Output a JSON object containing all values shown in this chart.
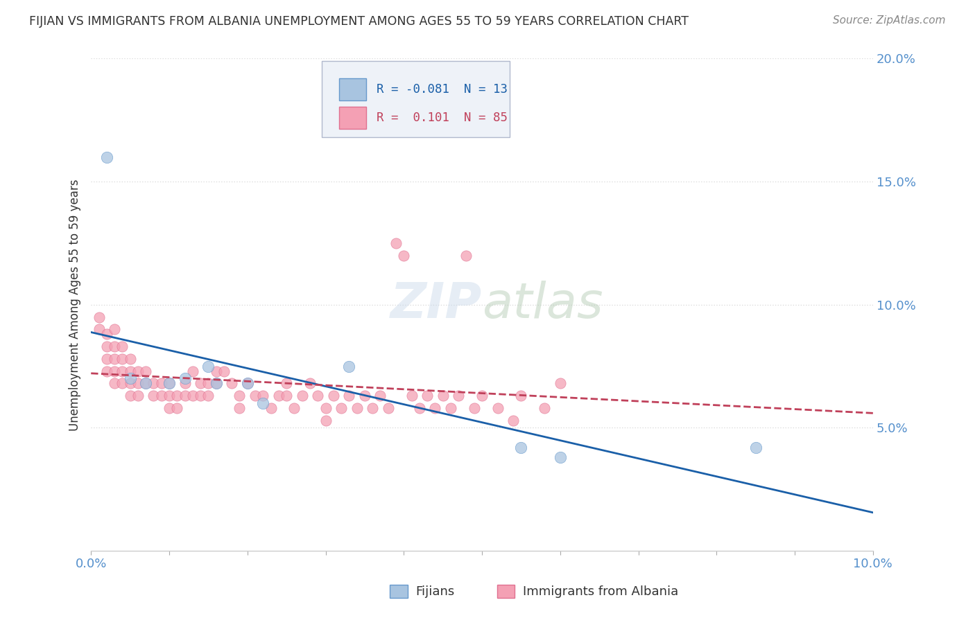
{
  "title": "FIJIAN VS IMMIGRANTS FROM ALBANIA UNEMPLOYMENT AMONG AGES 55 TO 59 YEARS CORRELATION CHART",
  "source": "Source: ZipAtlas.com",
  "ylabel": "Unemployment Among Ages 55 to 59 years",
  "xlim": [
    0.0,
    0.1
  ],
  "ylim": [
    0.0,
    0.2
  ],
  "yticks": [
    0.05,
    0.1,
    0.15,
    0.2
  ],
  "ytick_labels": [
    "5.0%",
    "10.0%",
    "15.0%",
    "20.0%"
  ],
  "fijian_color": "#a8c4e0",
  "fijian_edge_color": "#6699cc",
  "albania_color": "#f4a0b4",
  "albania_edge_color": "#e07090",
  "fijian_R": -0.081,
  "fijian_N": 13,
  "albania_R": 0.101,
  "albania_N": 85,
  "fijian_line_color": "#1a5fa8",
  "albania_line_color": "#c0405a",
  "fijian_points": [
    [
      0.002,
      0.16
    ],
    [
      0.005,
      0.07
    ],
    [
      0.007,
      0.068
    ],
    [
      0.01,
      0.068
    ],
    [
      0.012,
      0.07
    ],
    [
      0.015,
      0.075
    ],
    [
      0.016,
      0.068
    ],
    [
      0.02,
      0.068
    ],
    [
      0.022,
      0.06
    ],
    [
      0.033,
      0.075
    ],
    [
      0.055,
      0.042
    ],
    [
      0.06,
      0.038
    ],
    [
      0.085,
      0.042
    ]
  ],
  "albania_points": [
    [
      0.001,
      0.095
    ],
    [
      0.001,
      0.09
    ],
    [
      0.002,
      0.088
    ],
    [
      0.002,
      0.083
    ],
    [
      0.002,
      0.078
    ],
    [
      0.002,
      0.073
    ],
    [
      0.003,
      0.09
    ],
    [
      0.003,
      0.083
    ],
    [
      0.003,
      0.078
    ],
    [
      0.003,
      0.073
    ],
    [
      0.003,
      0.068
    ],
    [
      0.004,
      0.083
    ],
    [
      0.004,
      0.078
    ],
    [
      0.004,
      0.073
    ],
    [
      0.004,
      0.068
    ],
    [
      0.005,
      0.078
    ],
    [
      0.005,
      0.073
    ],
    [
      0.005,
      0.068
    ],
    [
      0.005,
      0.063
    ],
    [
      0.006,
      0.073
    ],
    [
      0.006,
      0.068
    ],
    [
      0.006,
      0.063
    ],
    [
      0.007,
      0.073
    ],
    [
      0.007,
      0.068
    ],
    [
      0.008,
      0.068
    ],
    [
      0.008,
      0.063
    ],
    [
      0.009,
      0.068
    ],
    [
      0.009,
      0.063
    ],
    [
      0.01,
      0.068
    ],
    [
      0.01,
      0.063
    ],
    [
      0.01,
      0.058
    ],
    [
      0.011,
      0.063
    ],
    [
      0.011,
      0.058
    ],
    [
      0.012,
      0.068
    ],
    [
      0.012,
      0.063
    ],
    [
      0.013,
      0.073
    ],
    [
      0.013,
      0.063
    ],
    [
      0.014,
      0.068
    ],
    [
      0.014,
      0.063
    ],
    [
      0.015,
      0.068
    ],
    [
      0.015,
      0.063
    ],
    [
      0.016,
      0.073
    ],
    [
      0.016,
      0.068
    ],
    [
      0.017,
      0.073
    ],
    [
      0.018,
      0.068
    ],
    [
      0.019,
      0.063
    ],
    [
      0.019,
      0.058
    ],
    [
      0.02,
      0.068
    ],
    [
      0.021,
      0.063
    ],
    [
      0.022,
      0.063
    ],
    [
      0.023,
      0.058
    ],
    [
      0.024,
      0.063
    ],
    [
      0.025,
      0.068
    ],
    [
      0.025,
      0.063
    ],
    [
      0.026,
      0.058
    ],
    [
      0.027,
      0.063
    ],
    [
      0.028,
      0.068
    ],
    [
      0.029,
      0.063
    ],
    [
      0.03,
      0.058
    ],
    [
      0.03,
      0.053
    ],
    [
      0.031,
      0.063
    ],
    [
      0.032,
      0.058
    ],
    [
      0.033,
      0.063
    ],
    [
      0.034,
      0.058
    ],
    [
      0.035,
      0.063
    ],
    [
      0.036,
      0.058
    ],
    [
      0.037,
      0.063
    ],
    [
      0.038,
      0.058
    ],
    [
      0.039,
      0.125
    ],
    [
      0.04,
      0.12
    ],
    [
      0.041,
      0.063
    ],
    [
      0.042,
      0.058
    ],
    [
      0.043,
      0.063
    ],
    [
      0.044,
      0.058
    ],
    [
      0.045,
      0.063
    ],
    [
      0.046,
      0.058
    ],
    [
      0.047,
      0.063
    ],
    [
      0.048,
      0.12
    ],
    [
      0.049,
      0.058
    ],
    [
      0.05,
      0.063
    ],
    [
      0.052,
      0.058
    ],
    [
      0.054,
      0.053
    ],
    [
      0.055,
      0.063
    ],
    [
      0.058,
      0.058
    ],
    [
      0.06,
      0.068
    ]
  ],
  "background_color": "#ffffff",
  "grid_color": "#dddddd",
  "title_color": "#333333",
  "axis_label_color": "#333333",
  "tick_color": "#5590cc"
}
